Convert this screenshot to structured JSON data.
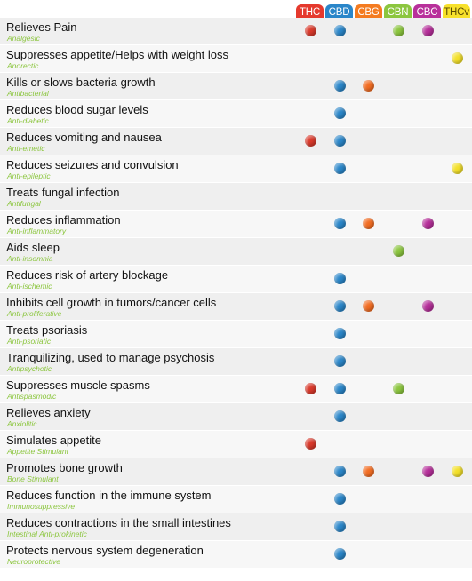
{
  "cannabinoids": [
    {
      "label": "THC",
      "color": "#d9392b",
      "text_color": "#ffffff",
      "header_bg": "#e5392d"
    },
    {
      "label": "CBD",
      "color": "#2a86c9",
      "text_color": "#ffffff",
      "header_bg": "#2a86c9"
    },
    {
      "label": "CBG",
      "color": "#f26d23",
      "text_color": "#ffffff",
      "header_bg": "#f47b20"
    },
    {
      "label": "CBN",
      "color": "#8cc63f",
      "text_color": "#ffffff",
      "header_bg": "#8cc63f"
    },
    {
      "label": "CBC",
      "color": "#b62f9a",
      "text_color": "#ffffff",
      "header_bg": "#b8309b"
    },
    {
      "label": "THCv",
      "color": "#f3e02a",
      "text_color": "#5a4a00",
      "header_bg": "#f7e12b"
    }
  ],
  "effects": [
    {
      "effect": "Relieves Pain",
      "term": "Analgesic",
      "has": [
        true,
        true,
        false,
        true,
        true,
        false
      ]
    },
    {
      "effect": "Suppresses appetite/Helps with weight loss",
      "term": "Anorectic",
      "has": [
        false,
        false,
        false,
        false,
        false,
        true
      ]
    },
    {
      "effect": "Kills or slows bacteria growth",
      "term": "Antibacterial",
      "has": [
        false,
        true,
        true,
        false,
        false,
        false
      ]
    },
    {
      "effect": "Reduces blood sugar levels",
      "term": "Anti-diabetic",
      "has": [
        false,
        true,
        false,
        false,
        false,
        false
      ]
    },
    {
      "effect": "Reduces vomiting and nausea",
      "term": "Anti-emetic",
      "has": [
        true,
        true,
        false,
        false,
        false,
        false
      ]
    },
    {
      "effect": "Reduces seizures and convulsion",
      "term": "Anti-epileptic",
      "has": [
        false,
        true,
        false,
        false,
        false,
        true
      ]
    },
    {
      "effect": "Treats fungal infection",
      "term": "Antifungal",
      "has": [
        false,
        false,
        false,
        false,
        false,
        false
      ]
    },
    {
      "effect": "Reduces inflammation",
      "term": "Anti-inflammatory",
      "has": [
        false,
        true,
        true,
        false,
        true,
        false
      ]
    },
    {
      "effect": "Aids sleep",
      "term": "Anti-insomnia",
      "has": [
        false,
        false,
        false,
        true,
        false,
        false
      ]
    },
    {
      "effect": "Reduces risk of artery blockage",
      "term": "Anti-ischemic",
      "has": [
        false,
        true,
        false,
        false,
        false,
        false
      ]
    },
    {
      "effect": "Inhibits cell growth in tumors/cancer cells",
      "term": "Anti-proliferative",
      "has": [
        false,
        true,
        true,
        false,
        true,
        false
      ]
    },
    {
      "effect": "Treats psoriasis",
      "term": "Anti-psoriatic",
      "has": [
        false,
        true,
        false,
        false,
        false,
        false
      ]
    },
    {
      "effect": "Tranquilizing, used to manage psychosis",
      "term": "Antipsychotic",
      "has": [
        false,
        true,
        false,
        false,
        false,
        false
      ]
    },
    {
      "effect": "Suppresses muscle spasms",
      "term": "Antispasmodic",
      "has": [
        true,
        true,
        false,
        true,
        false,
        false
      ]
    },
    {
      "effect": "Relieves anxiety",
      "term": "Anxiolitic",
      "has": [
        false,
        true,
        false,
        false,
        false,
        false
      ]
    },
    {
      "effect": "Simulates appetite",
      "term": "Appetite Stimulant",
      "has": [
        true,
        false,
        false,
        false,
        false,
        false
      ]
    },
    {
      "effect": "Promotes bone growth",
      "term": "Bone Stimulant",
      "has": [
        false,
        true,
        true,
        false,
        true,
        true
      ]
    },
    {
      "effect": "Reduces function in the immune system",
      "term": "Immunosuppressive",
      "has": [
        false,
        true,
        false,
        false,
        false,
        false
      ]
    },
    {
      "effect": "Reduces contractions in the small intestines",
      "term": "Intestinal Anti-prokinetic",
      "has": [
        false,
        true,
        false,
        false,
        false,
        false
      ]
    },
    {
      "effect": "Protects nervous system degeneration",
      "term": "Neuroprotective",
      "has": [
        false,
        true,
        false,
        false,
        false,
        false
      ]
    }
  ]
}
